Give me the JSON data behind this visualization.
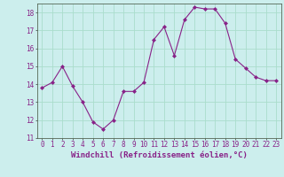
{
  "x": [
    0,
    1,
    2,
    3,
    4,
    5,
    6,
    7,
    8,
    9,
    10,
    11,
    12,
    13,
    14,
    15,
    16,
    17,
    18,
    19,
    20,
    21,
    22,
    23
  ],
  "y": [
    13.8,
    14.1,
    15.0,
    13.9,
    13.0,
    11.9,
    11.5,
    12.0,
    13.6,
    13.6,
    14.1,
    16.5,
    17.2,
    15.6,
    17.6,
    18.3,
    18.2,
    18.2,
    17.4,
    15.4,
    14.9,
    14.4,
    14.2,
    14.2
  ],
  "line_color": "#882288",
  "marker": "D",
  "marker_size": 2,
  "bg_color": "#cceeed",
  "grid_color": "#aaddcc",
  "xlabel": "Windchill (Refroidissement éolien,°C)",
  "ylim": [
    11,
    18.5
  ],
  "xlim": [
    -0.5,
    23.5
  ],
  "yticks": [
    11,
    12,
    13,
    14,
    15,
    16,
    17,
    18
  ],
  "xticks": [
    0,
    1,
    2,
    3,
    4,
    5,
    6,
    7,
    8,
    9,
    10,
    11,
    12,
    13,
    14,
    15,
    16,
    17,
    18,
    19,
    20,
    21,
    22,
    23
  ],
  "tick_fontsize": 5.5,
  "xlabel_fontsize": 6.5
}
